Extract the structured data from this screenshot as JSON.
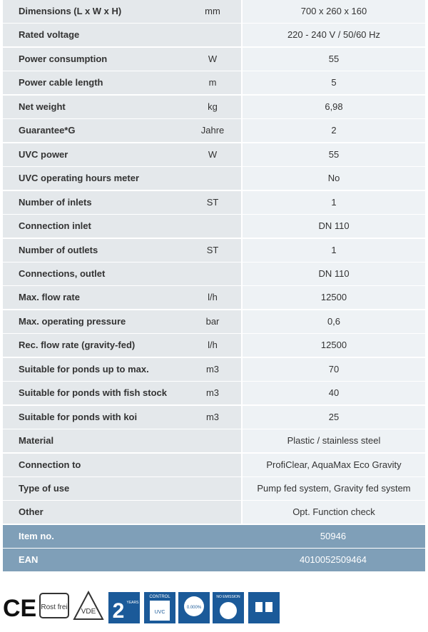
{
  "table": {
    "rows": [
      {
        "label": "Dimensions (L x W x H)",
        "unit": "mm",
        "value": "700 x 260 x 160"
      },
      {
        "label": "Rated voltage",
        "value": "220 - 240 V / 50/60 Hz"
      },
      {
        "label": "Power consumption",
        "unit": "W",
        "value": "55"
      },
      {
        "label": "Power cable length",
        "unit": "m",
        "value": "5"
      },
      {
        "label": "Net weight",
        "unit": "kg",
        "value": "6,98"
      },
      {
        "label": "Guarantee*G",
        "unit": "Jahre",
        "value": "2"
      },
      {
        "label": "UVC power",
        "unit": "W",
        "value": "55"
      },
      {
        "label": "UVC operating hours meter",
        "value": "No"
      },
      {
        "label": "Number of inlets",
        "unit": "ST",
        "value": "1"
      },
      {
        "label": "Connection inlet",
        "value": "DN 110"
      },
      {
        "label": "Number of outlets",
        "unit": "ST",
        "value": "1"
      },
      {
        "label": "Connections, outlet",
        "value": "DN 110"
      },
      {
        "label": "Max. flow rate",
        "unit": "l/h",
        "value": "12500"
      },
      {
        "label": "Max. operating pressure",
        "unit": "bar",
        "value": "0,6"
      },
      {
        "label": "Rec. flow rate (gravity-fed)",
        "unit": "l/h",
        "value": "12500"
      },
      {
        "label": "Suitable for ponds up to max.",
        "unit": "m3",
        "value": "70"
      },
      {
        "label": "Suitable for ponds with fish stock",
        "unit": "m3",
        "value": "40"
      },
      {
        "label": "Suitable for ponds with koi",
        "unit": "m3",
        "value": "25"
      },
      {
        "label": "Material",
        "value": "Plastic / stainless steel"
      },
      {
        "label": "Connection to",
        "value": "ProfiClear, AquaMax Eco Gravity"
      },
      {
        "label": "Type of use",
        "value": "Pump fed system, Gravity fed system"
      },
      {
        "label": "Other",
        "value": "Opt. Function check"
      }
    ],
    "footer": [
      {
        "label": "Item no.",
        "value": "50946"
      },
      {
        "label": "EAN",
        "value": "4010052509464"
      }
    ]
  },
  "badges": {
    "ce": "CE",
    "rost": "Rost frei",
    "vde": "VDE",
    "years": "2",
    "years_text": "YEARS",
    "control": "CONTROL",
    "uvc": "UVC",
    "percent": "0.000%",
    "emission": "NO EMISSION"
  }
}
